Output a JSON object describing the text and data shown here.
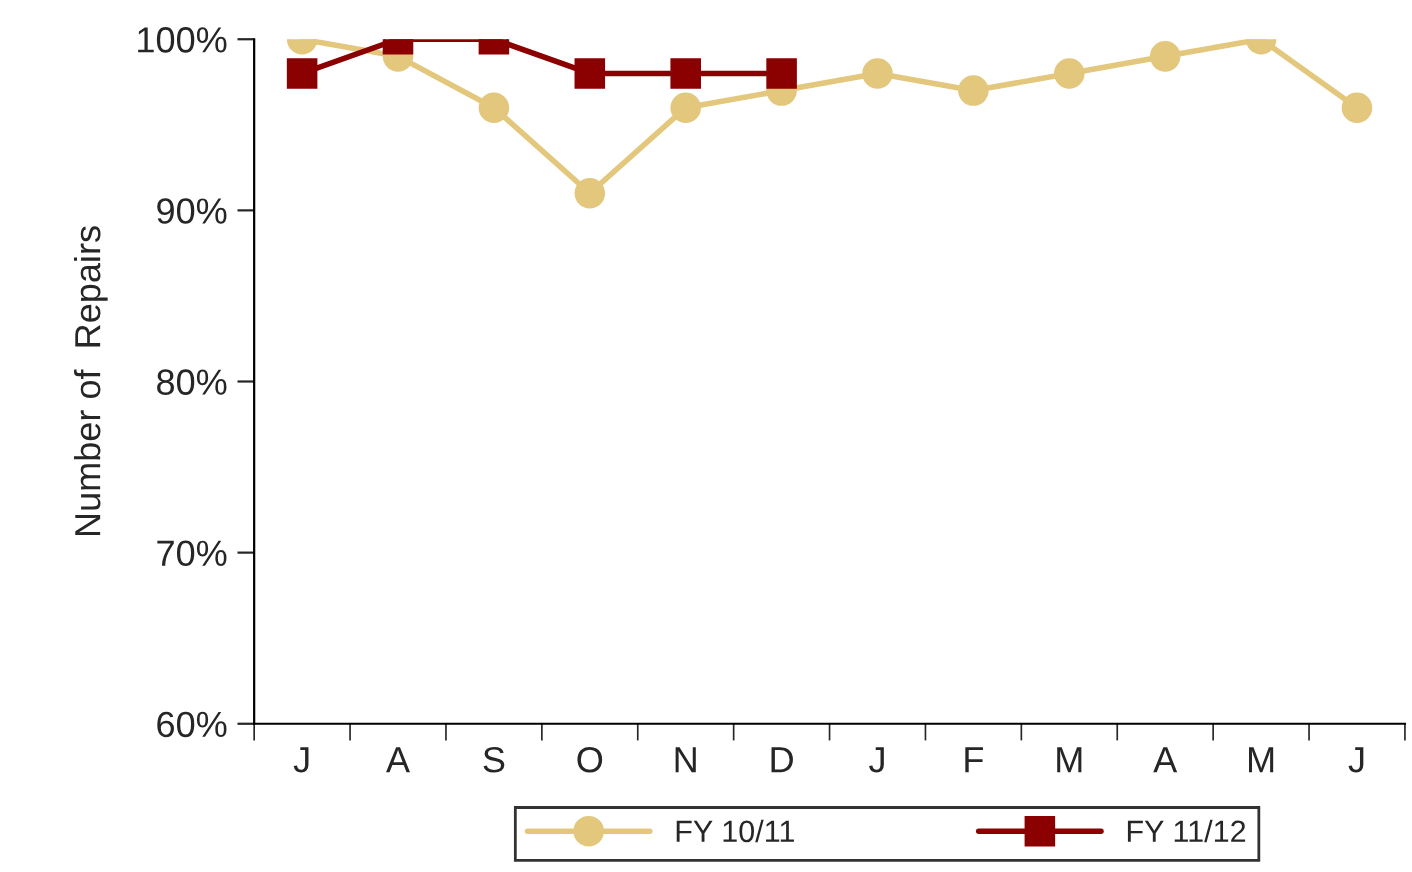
{
  "chart_data": {
    "type": "line",
    "ylabel": "Number of  Repairs",
    "categories": [
      "J",
      "A",
      "S",
      "O",
      "N",
      "D",
      "J",
      "F",
      "M",
      "A",
      "M",
      "J"
    ],
    "series": [
      {
        "name": "FY 10/11",
        "color": "#e3c77c",
        "marker": "circle",
        "values": [
          100,
          99,
          96,
          91,
          96,
          97,
          98,
          97,
          98,
          99,
          100,
          96
        ]
      },
      {
        "name": "FY 11/12",
        "color": "#8b0000",
        "marker": "square",
        "values": [
          98,
          100,
          100,
          98,
          98,
          98,
          null,
          null,
          null,
          null,
          null,
          null
        ]
      }
    ],
    "ylim": [
      60,
      100
    ],
    "yticks": [
      {
        "value": 60,
        "label": "60%"
      },
      {
        "value": 70,
        "label": "70%"
      },
      {
        "value": 80,
        "label": "80%"
      },
      {
        "value": 90,
        "label": "90%"
      },
      {
        "value": 100,
        "label": "100%"
      }
    ],
    "grid": false,
    "legend": "bottom"
  }
}
